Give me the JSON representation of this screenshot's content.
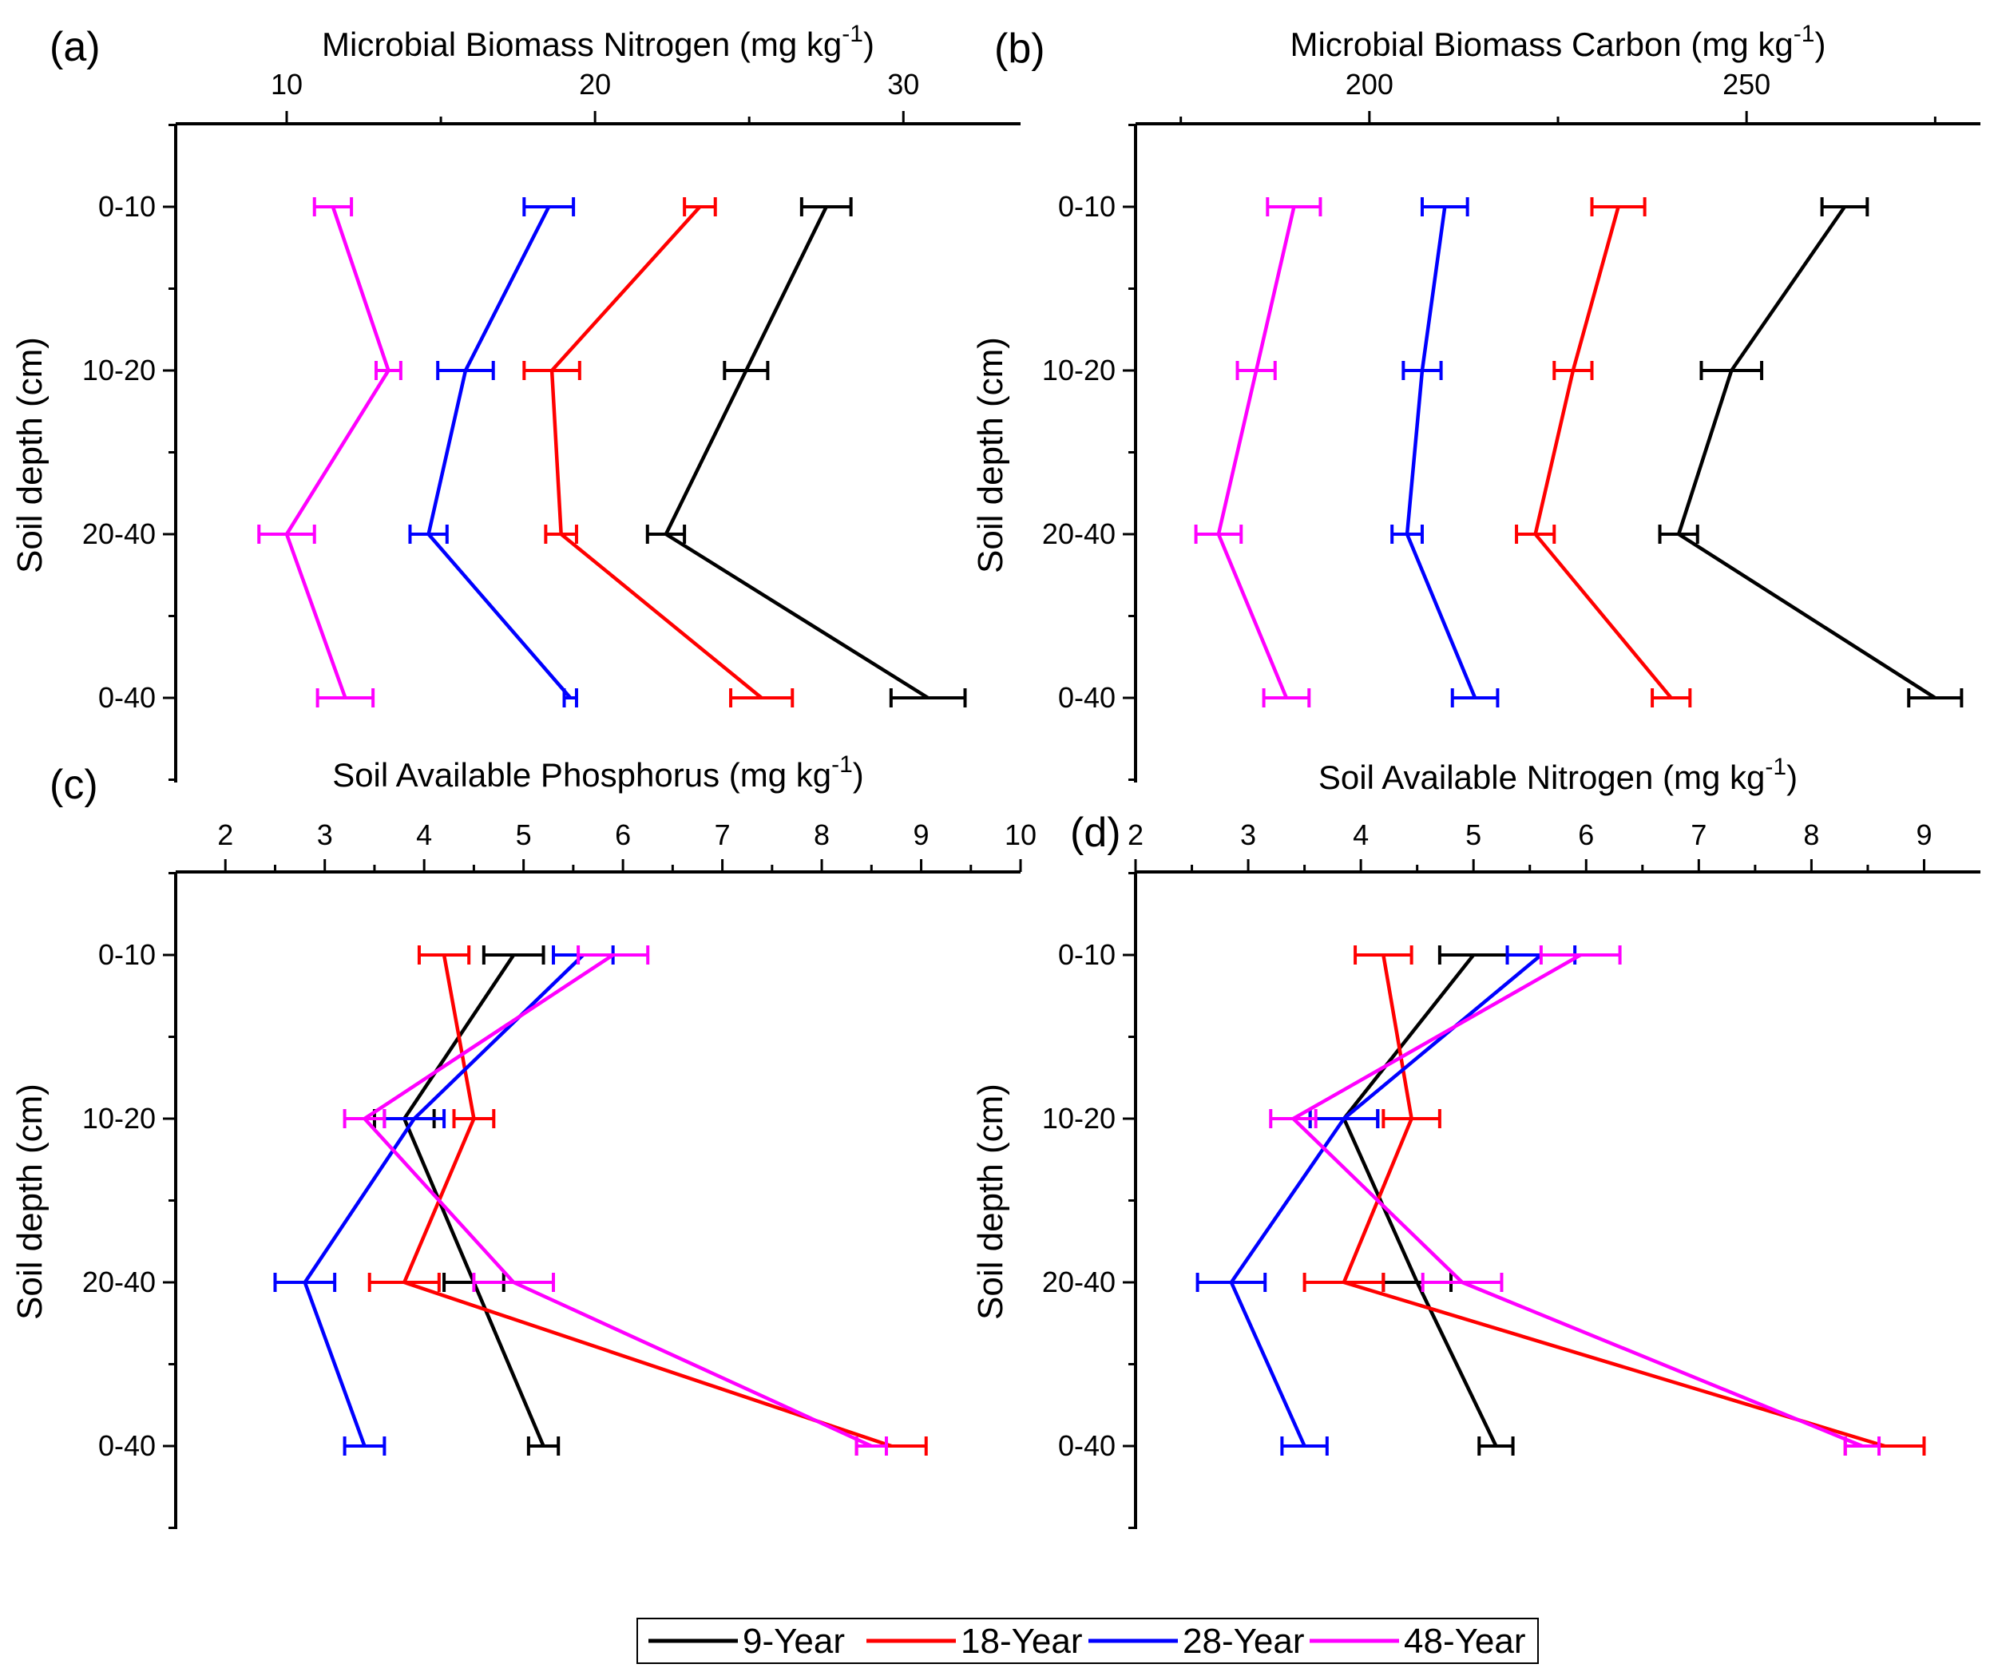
{
  "legend": [
    {
      "label": "9-Year",
      "color": "#000000"
    },
    {
      "label": "18-Year",
      "color": "#ff0000"
    },
    {
      "label": "28-Year",
      "color": "#0000ff"
    },
    {
      "label": "48-Year",
      "color": "#ff00ff"
    }
  ],
  "chart_data": [
    {
      "type": "line",
      "panel": "(a)",
      "title": "Microbial Biomass Nitrogen (mg kg",
      "title_sup": "-1",
      "title_close": ")",
      "ylabel": "Soil depth (cm)",
      "categories": [
        "0-10",
        "10-20",
        "20-40",
        "0-40"
      ],
      "xlim": [
        6.4,
        33.8
      ],
      "xticks": [
        10,
        20,
        30
      ],
      "xtick_labels": [
        "10",
        "20",
        "30"
      ],
      "series": [
        {
          "name": "9-Year",
          "values": [
            27.5,
            24.9,
            22.3,
            30.8
          ],
          "errors": [
            0.8,
            0.7,
            0.6,
            1.2
          ]
        },
        {
          "name": "18-Year",
          "values": [
            23.4,
            18.6,
            18.9,
            25.4
          ],
          "errors": [
            0.5,
            0.9,
            0.5,
            1.0
          ]
        },
        {
          "name": "28-Year",
          "values": [
            18.5,
            15.8,
            14.6,
            19.2
          ],
          "errors": [
            0.8,
            0.9,
            0.6,
            0.2
          ]
        },
        {
          "name": "48-Year",
          "values": [
            11.5,
            13.3,
            10.0,
            11.9
          ],
          "errors": [
            0.6,
            0.4,
            0.9,
            0.9
          ]
        }
      ]
    },
    {
      "type": "line",
      "panel": "(b)",
      "title": "Microbial Biomass Carbon (mg kg",
      "title_sup": "-1",
      "title_close": ")",
      "ylabel": "Soil depth (cm)",
      "categories": [
        "0-10",
        "10-20",
        "20-40",
        "0-40"
      ],
      "xlim": [
        169,
        281
      ],
      "xticks": [
        200,
        250
      ],
      "xtick_labels": [
        "200",
        "250"
      ],
      "series": [
        {
          "name": "9-Year",
          "values": [
            263,
            248,
            241,
            275
          ],
          "errors": [
            3.0,
            4.0,
            2.5,
            3.5
          ]
        },
        {
          "name": "18-Year",
          "values": [
            233,
            227,
            222,
            240
          ],
          "errors": [
            3.5,
            2.5,
            2.5,
            2.5
          ]
        },
        {
          "name": "28-Year",
          "values": [
            210,
            207,
            205,
            214
          ],
          "errors": [
            3.0,
            2.5,
            2.0,
            3.0
          ]
        },
        {
          "name": "48-Year",
          "values": [
            190,
            185,
            180,
            189
          ],
          "errors": [
            3.5,
            2.5,
            3.0,
            3.0
          ]
        }
      ]
    },
    {
      "type": "line",
      "panel": "(c)",
      "title": "Soil Available Phosphorus (mg kg",
      "title_sup": "-1",
      "title_close": ")",
      "ylabel": "Soil depth (cm)",
      "categories": [
        "0-10",
        "10-20",
        "20-40",
        "0-40"
      ],
      "xlim": [
        1.5,
        10
      ],
      "xticks": [
        2,
        3,
        4,
        5,
        6,
        7,
        8,
        9,
        10
      ],
      "xtick_labels": [
        "2",
        "3",
        "4",
        "5",
        "6",
        "7",
        "8",
        "9",
        "10"
      ],
      "series": [
        {
          "name": "9-Year",
          "values": [
            4.9,
            3.8,
            4.5,
            5.2
          ],
          "errors": [
            0.3,
            0.3,
            0.3,
            0.15
          ]
        },
        {
          "name": "18-Year",
          "values": [
            4.2,
            4.5,
            3.8,
            8.7
          ],
          "errors": [
            0.25,
            0.2,
            0.35,
            0.35
          ]
        },
        {
          "name": "28-Year",
          "values": [
            5.6,
            3.9,
            2.8,
            3.4
          ],
          "errors": [
            0.3,
            0.3,
            0.3,
            0.2
          ]
        },
        {
          "name": "48-Year",
          "values": [
            5.9,
            3.4,
            4.9,
            8.5
          ],
          "errors": [
            0.35,
            0.2,
            0.4,
            0.15
          ]
        }
      ]
    },
    {
      "type": "line",
      "panel": "(d)",
      "title": "Soil Available Nitrogen (mg kg",
      "title_sup": "-1",
      "title_close": ")",
      "ylabel": "Soil depth (cm)",
      "categories": [
        "0-10",
        "10-20",
        "20-40",
        "0-40"
      ],
      "xlim": [
        2,
        9.5
      ],
      "xticks": [
        2,
        3,
        4,
        5,
        6,
        7,
        8,
        9
      ],
      "xtick_labels": [
        "2",
        "3",
        "4",
        "5",
        "6",
        "7",
        "8",
        "9"
      ],
      "series": [
        {
          "name": "9-Year",
          "values": [
            5.0,
            3.85,
            4.5,
            5.2
          ],
          "errors": [
            0.3,
            0.3,
            0.3,
            0.15
          ]
        },
        {
          "name": "18-Year",
          "values": [
            4.2,
            4.45,
            3.85,
            8.65
          ],
          "errors": [
            0.25,
            0.25,
            0.35,
            0.35
          ]
        },
        {
          "name": "28-Year",
          "values": [
            5.6,
            3.85,
            2.85,
            3.5
          ],
          "errors": [
            0.3,
            0.3,
            0.3,
            0.2
          ]
        },
        {
          "name": "48-Year",
          "values": [
            5.95,
            3.4,
            4.9,
            8.45
          ],
          "errors": [
            0.35,
            0.2,
            0.35,
            0.15
          ]
        }
      ]
    }
  ]
}
